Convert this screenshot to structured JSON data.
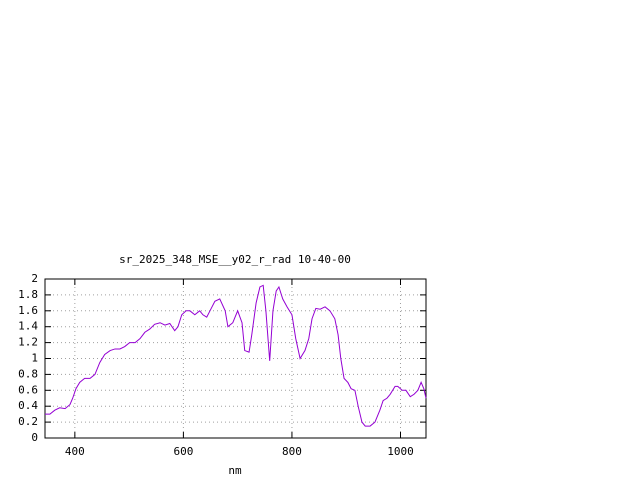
{
  "chart_data": {
    "type": "line",
    "title": "sr_2025_348_MSE__y02_r_rad 10-40-00",
    "x_label": "nm",
    "x": [
      345,
      354,
      363,
      372,
      382,
      391,
      396,
      402,
      409,
      418,
      428,
      437,
      446,
      455,
      465,
      474,
      483,
      492,
      501,
      511,
      520,
      529,
      538,
      547,
      557,
      566,
      575,
      584,
      590,
      597,
      605,
      612,
      621,
      630,
      636,
      643,
      649,
      658,
      667,
      677,
      682,
      691,
      700,
      708,
      713,
      721,
      726,
      734,
      741,
      747,
      752,
      759,
      765,
      771,
      776,
      783,
      791,
      800,
      807,
      815,
      824,
      831,
      837,
      844,
      852,
      861,
      870,
      879,
      885,
      890,
      896,
      903,
      909,
      916,
      922,
      929,
      935,
      944,
      953,
      962,
      968,
      975,
      981,
      990,
      995,
      1003,
      1010,
      1018,
      1025,
      1032,
      1038,
      1043,
      1047
    ],
    "series": [
      {
        "color": "#9400d3",
        "values": [
          0.3,
          0.3,
          0.35,
          0.38,
          0.37,
          0.42,
          0.5,
          0.62,
          0.7,
          0.75,
          0.75,
          0.8,
          0.95,
          1.05,
          1.1,
          1.12,
          1.12,
          1.15,
          1.2,
          1.2,
          1.25,
          1.33,
          1.37,
          1.43,
          1.45,
          1.42,
          1.44,
          1.35,
          1.4,
          1.55,
          1.6,
          1.6,
          1.55,
          1.6,
          1.55,
          1.52,
          1.6,
          1.72,
          1.75,
          1.6,
          1.4,
          1.45,
          1.6,
          1.45,
          1.1,
          1.08,
          1.3,
          1.7,
          1.9,
          1.92,
          1.6,
          0.97,
          1.6,
          1.85,
          1.9,
          1.75,
          1.65,
          1.55,
          1.25,
          1.0,
          1.1,
          1.25,
          1.5,
          1.63,
          1.62,
          1.65,
          1.6,
          1.5,
          1.3,
          1.0,
          0.75,
          0.7,
          0.62,
          0.6,
          0.4,
          0.2,
          0.15,
          0.15,
          0.2,
          0.35,
          0.47,
          0.5,
          0.55,
          0.65,
          0.65,
          0.6,
          0.6,
          0.52,
          0.55,
          0.6,
          0.7,
          0.62,
          0.5
        ]
      }
    ],
    "xlim": [
      345,
      1047
    ],
    "xticks": [
      400,
      600,
      800,
      1000
    ],
    "ylim": [
      0,
      2
    ],
    "yticks": [
      0,
      0.2,
      0.4,
      0.6,
      0.8,
      1,
      1.2,
      1.4,
      1.6,
      1.8,
      2
    ],
    "grid": true
  }
}
